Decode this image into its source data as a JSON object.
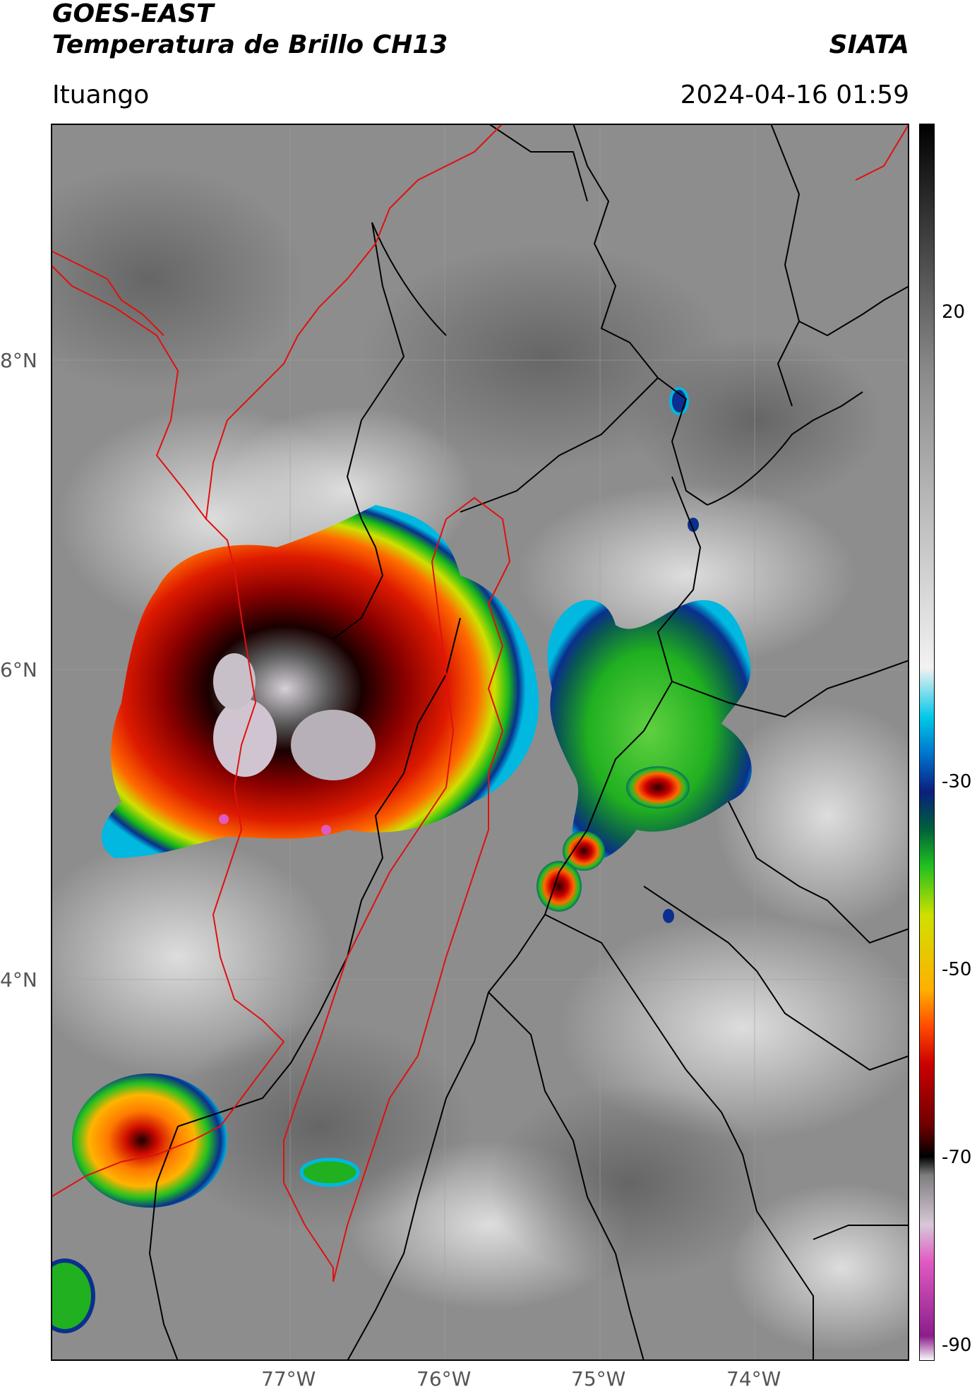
{
  "header": {
    "satellite": "GOES-EAST",
    "product": "Temperatura de Brillo CH13",
    "org": "SIATA",
    "region": "Ituango",
    "datetime": "2024-04-16 01:59"
  },
  "axes": {
    "lon_ticks": [
      "77°W",
      "76°W",
      "75°W",
      "74°W"
    ],
    "lat_ticks": [
      "8°N",
      "6°N",
      "4°N"
    ]
  },
  "colorbar": {
    "ticks": [
      "20",
      "-30",
      "-50",
      "-70",
      "-90"
    ],
    "colors": [
      "#ffffff",
      "#8a1e8a",
      "#e05ac2",
      "#d8c8d8",
      "#7e7e7e",
      "#000000",
      "#6e0000",
      "#cc0000",
      "#ff4a00",
      "#ffb000",
      "#cfe000",
      "#20c020",
      "#00603a",
      "#0a1f7e",
      "#0073cc",
      "#00c8e8",
      "#f2f2f2",
      "#8a8a8a",
      "#000000"
    ]
  },
  "map": {
    "background_color": "#8d8d8d",
    "border_color_black": "#000000",
    "border_color_red": "#e01010"
  }
}
